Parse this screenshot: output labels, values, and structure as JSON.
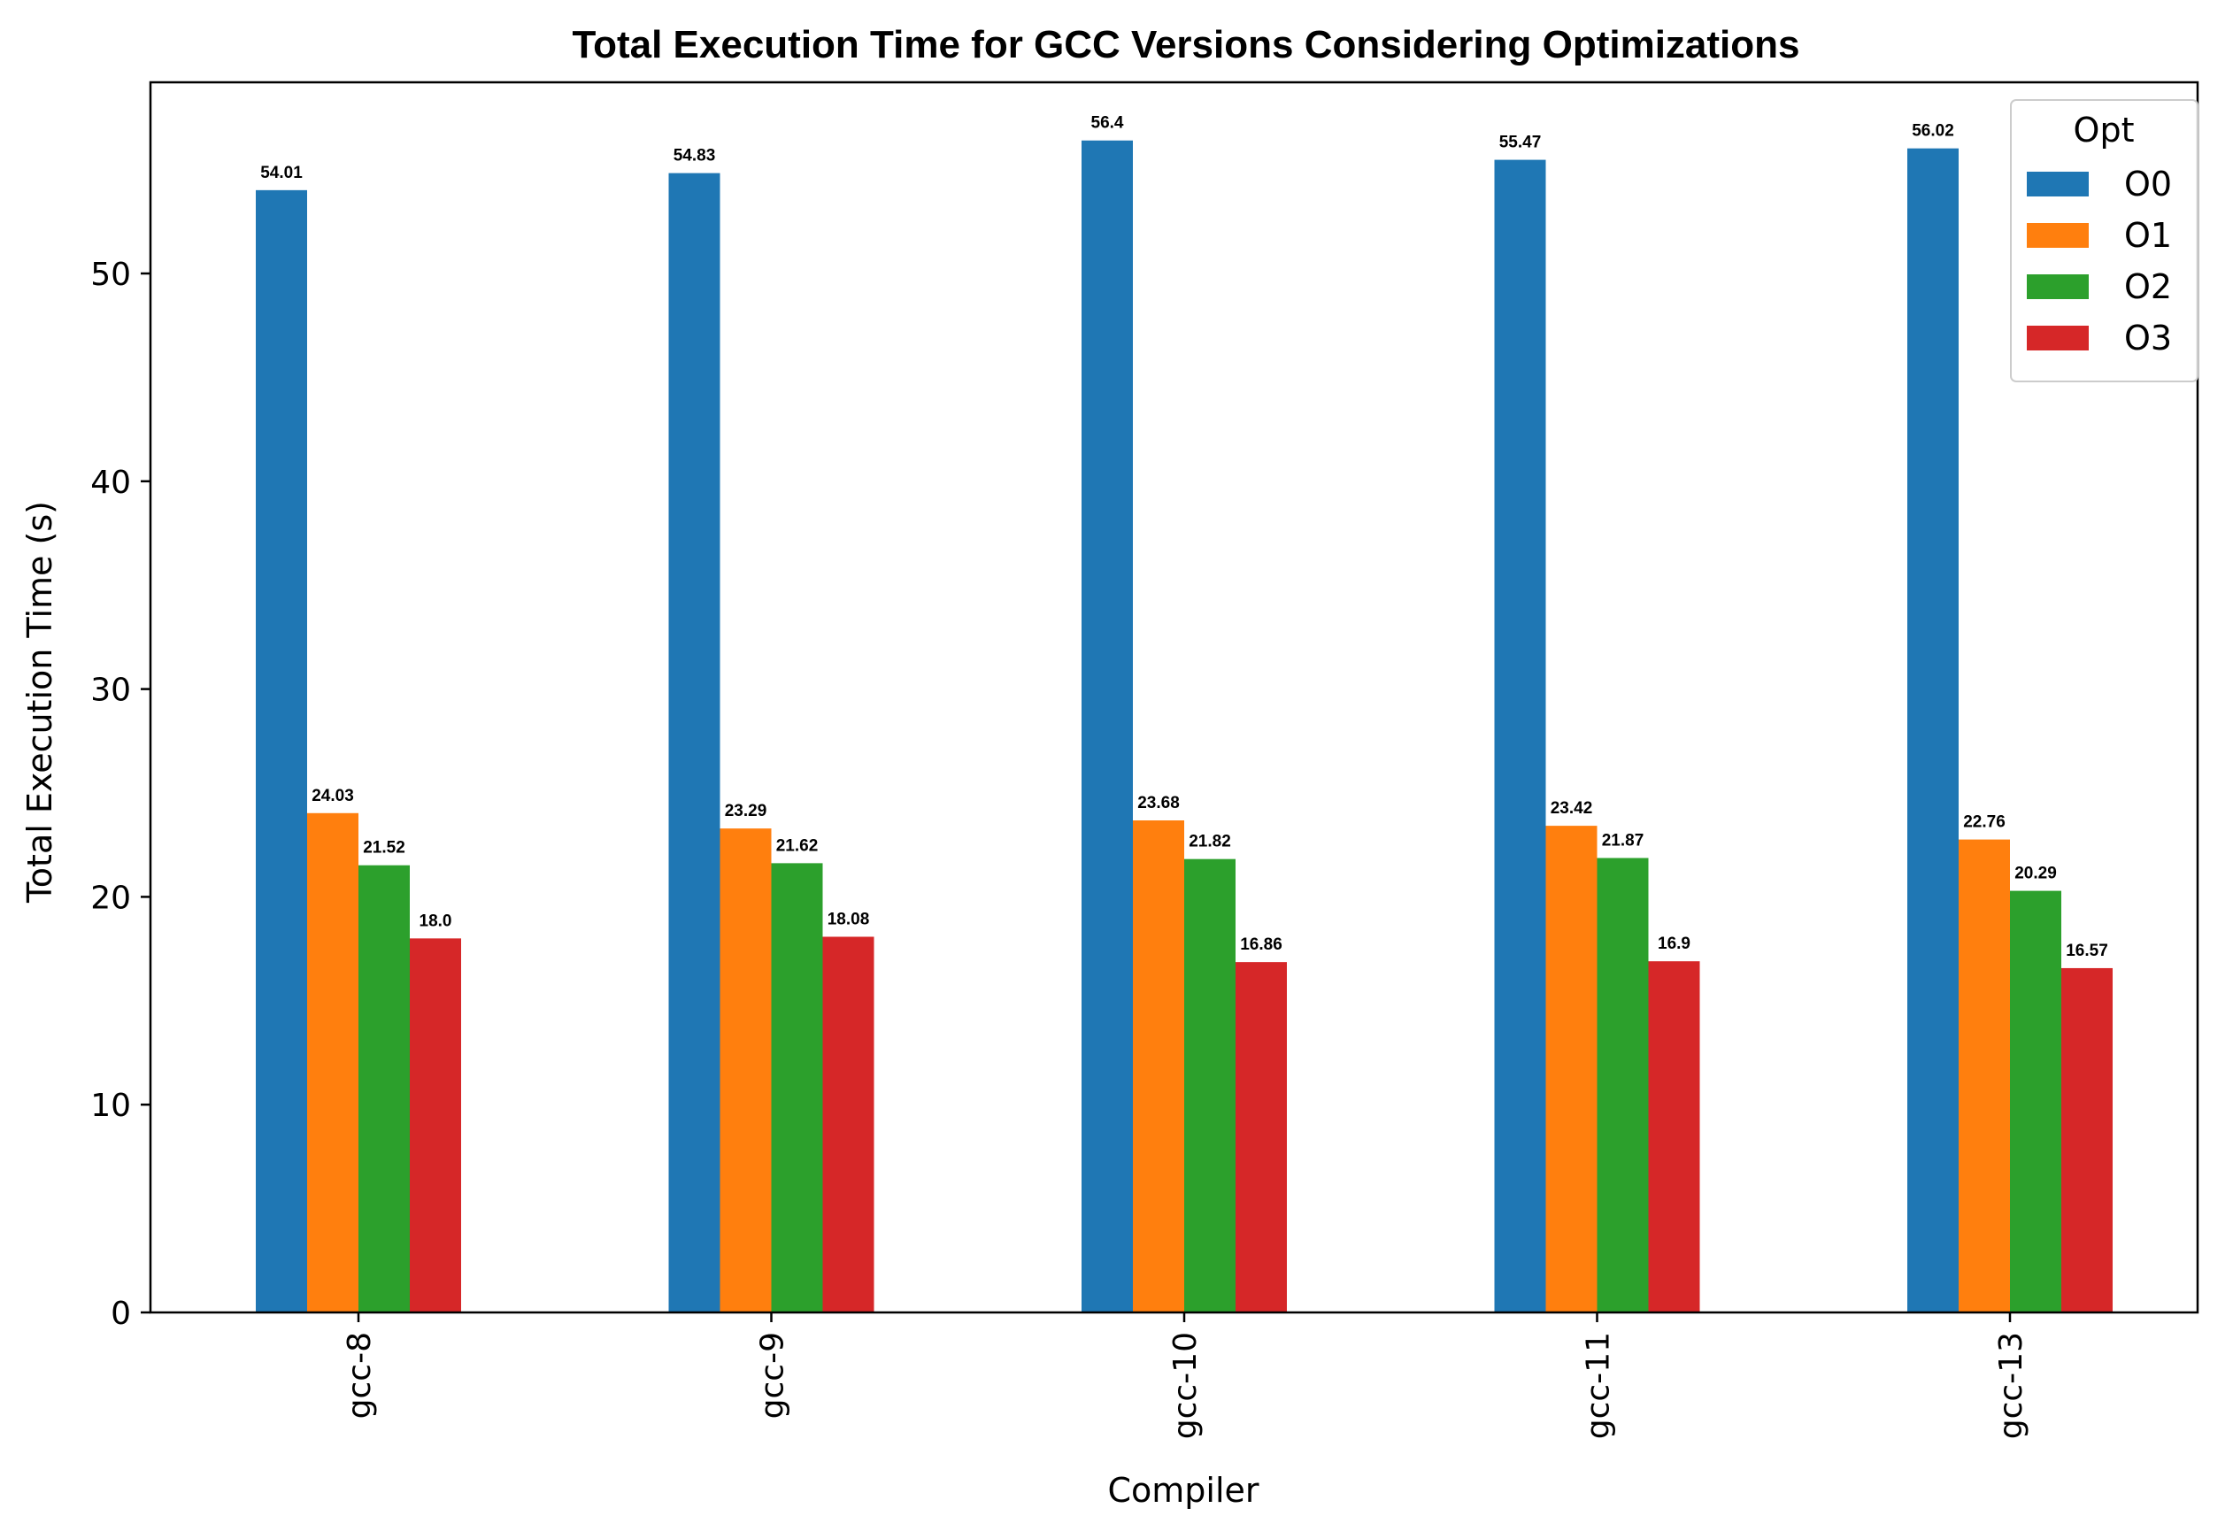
{
  "chart_data": {
    "type": "bar",
    "title": "Total Execution Time for GCC Versions Considering Optimizations",
    "xlabel": "Compiler",
    "ylabel": "Total Execution Time (s)",
    "categories": [
      "gcc-8",
      "gcc-9",
      "gcc-10",
      "gcc-11",
      "gcc-13"
    ],
    "ylim": [
      0,
      59.2
    ],
    "yticks": [
      0,
      10,
      20,
      30,
      40,
      50
    ],
    "legend": {
      "title": "Opt",
      "placement": "top-right"
    },
    "grid": false,
    "series": [
      {
        "name": "O0",
        "color": "#1f77b4",
        "values": [
          54.01,
          54.83,
          56.4,
          55.47,
          56.02
        ],
        "labels": [
          "54.01",
          "54.83",
          "56.4",
          "55.47",
          "56.02"
        ]
      },
      {
        "name": "O1",
        "color": "#ff7f0e",
        "values": [
          24.03,
          23.29,
          23.68,
          23.42,
          22.76
        ],
        "labels": [
          "24.03",
          "23.29",
          "23.68",
          "23.42",
          "22.76"
        ]
      },
      {
        "name": "O2",
        "color": "#2ca02c",
        "values": [
          21.52,
          21.62,
          21.82,
          21.87,
          20.29
        ],
        "labels": [
          "21.52",
          "21.62",
          "21.82",
          "21.87",
          "20.29"
        ]
      },
      {
        "name": "O3",
        "color": "#d62728",
        "values": [
          18.0,
          18.08,
          16.86,
          16.9,
          16.57
        ],
        "labels": [
          "18.0",
          "18.08",
          "16.86",
          "16.9",
          "16.57"
        ]
      }
    ]
  }
}
